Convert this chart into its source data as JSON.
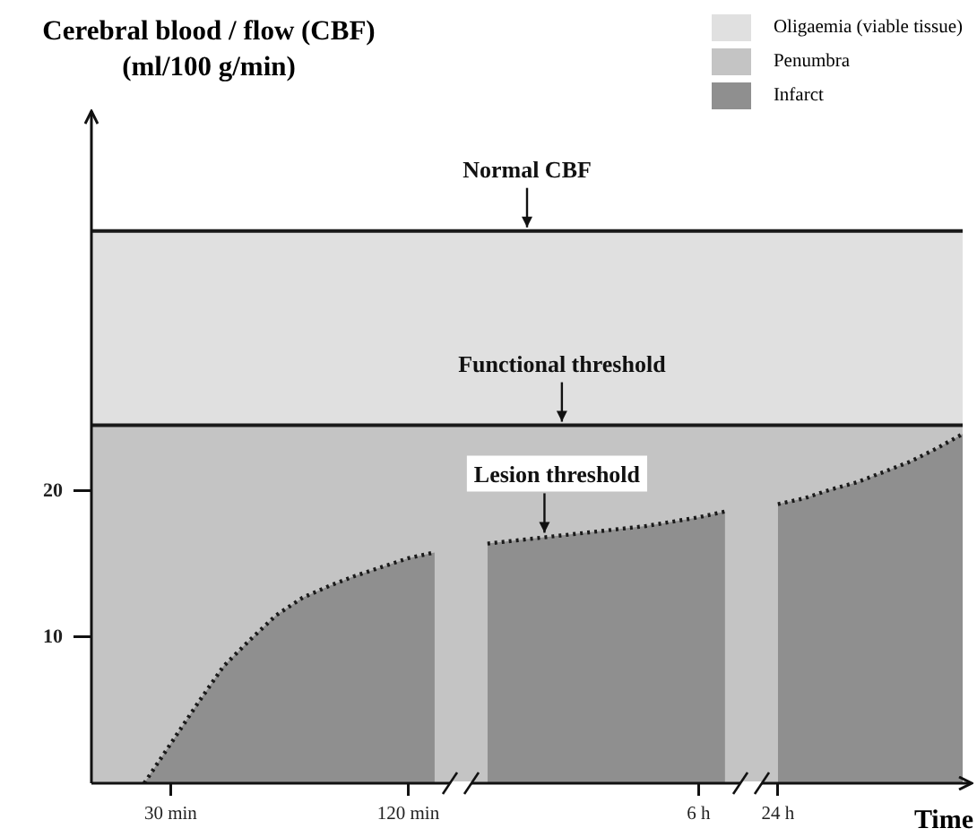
{
  "chart_data": {
    "type": "area",
    "ylabel": "Cerebral blood / flow (CBF) (ml/100 g/min)",
    "xlabel": "Time",
    "categories": [
      null,
      null,
      null,
      "30 min",
      null,
      null,
      null,
      null,
      null,
      null,
      null,
      null,
      "120 min",
      null,
      null,
      null,
      null,
      null,
      null,
      null,
      null,
      null,
      null,
      "6 h",
      null,
      null,
      "24 h",
      null,
      null,
      null,
      null,
      null,
      null,
      null
    ],
    "ylim": [
      0,
      46
    ],
    "yticks": [
      10,
      20
    ],
    "grid": false,
    "legend": "top right",
    "marker": "none",
    "series": [
      {
        "name": "Oligaemia (viable tissue)",
        "color": "#e0e0e0",
        "line_style": "solid",
        "values": [
          37.8,
          37.8,
          37.8,
          37.8,
          37.8,
          37.8,
          37.8,
          37.8,
          37.8,
          37.8,
          37.8,
          37.8,
          37.8,
          37.8,
          37.8,
          37.8,
          37.8,
          37.8,
          37.8,
          37.8,
          37.8,
          37.8,
          37.8,
          37.8,
          37.8,
          37.8,
          37.8,
          37.8,
          37.8,
          37.8,
          37.8,
          37.8,
          37.8,
          37.8
        ]
      },
      {
        "name": "Penumbra",
        "color": "#c4c4c4",
        "line_style": "solid",
        "values": [
          24.5,
          24.5,
          24.5,
          24.5,
          24.5,
          24.5,
          24.5,
          24.5,
          24.5,
          24.5,
          24.5,
          24.5,
          24.5,
          24.5,
          24.5,
          24.5,
          24.5,
          24.5,
          24.5,
          24.5,
          24.5,
          24.5,
          24.5,
          24.5,
          24.5,
          24.5,
          24.5,
          24.5,
          24.5,
          24.5,
          24.5,
          24.5,
          24.5,
          24.5
        ]
      },
      {
        "name": "Infarct",
        "color": "#8f8f8f",
        "line_style": "dotted",
        "values": [
          null,
          null,
          0,
          2.7,
          5.4,
          8.0,
          9.8,
          11.5,
          12.7,
          13.5,
          14.2,
          14.8,
          15.4,
          15.8,
          null,
          16.4,
          16.6,
          16.8,
          17.0,
          17.2,
          17.4,
          17.6,
          17.9,
          18.2,
          18.6,
          null,
          19.1,
          19.5,
          20.1,
          20.6,
          21.3,
          22.0,
          22.9,
          23.9
        ]
      }
    ],
    "annotations": [
      {
        "text": "Normal CBF",
        "y": 37.8
      },
      {
        "text": "Functional threshold",
        "y": 24.5
      },
      {
        "text": "Lesion threshold",
        "y": 16.9
      }
    ]
  }
}
